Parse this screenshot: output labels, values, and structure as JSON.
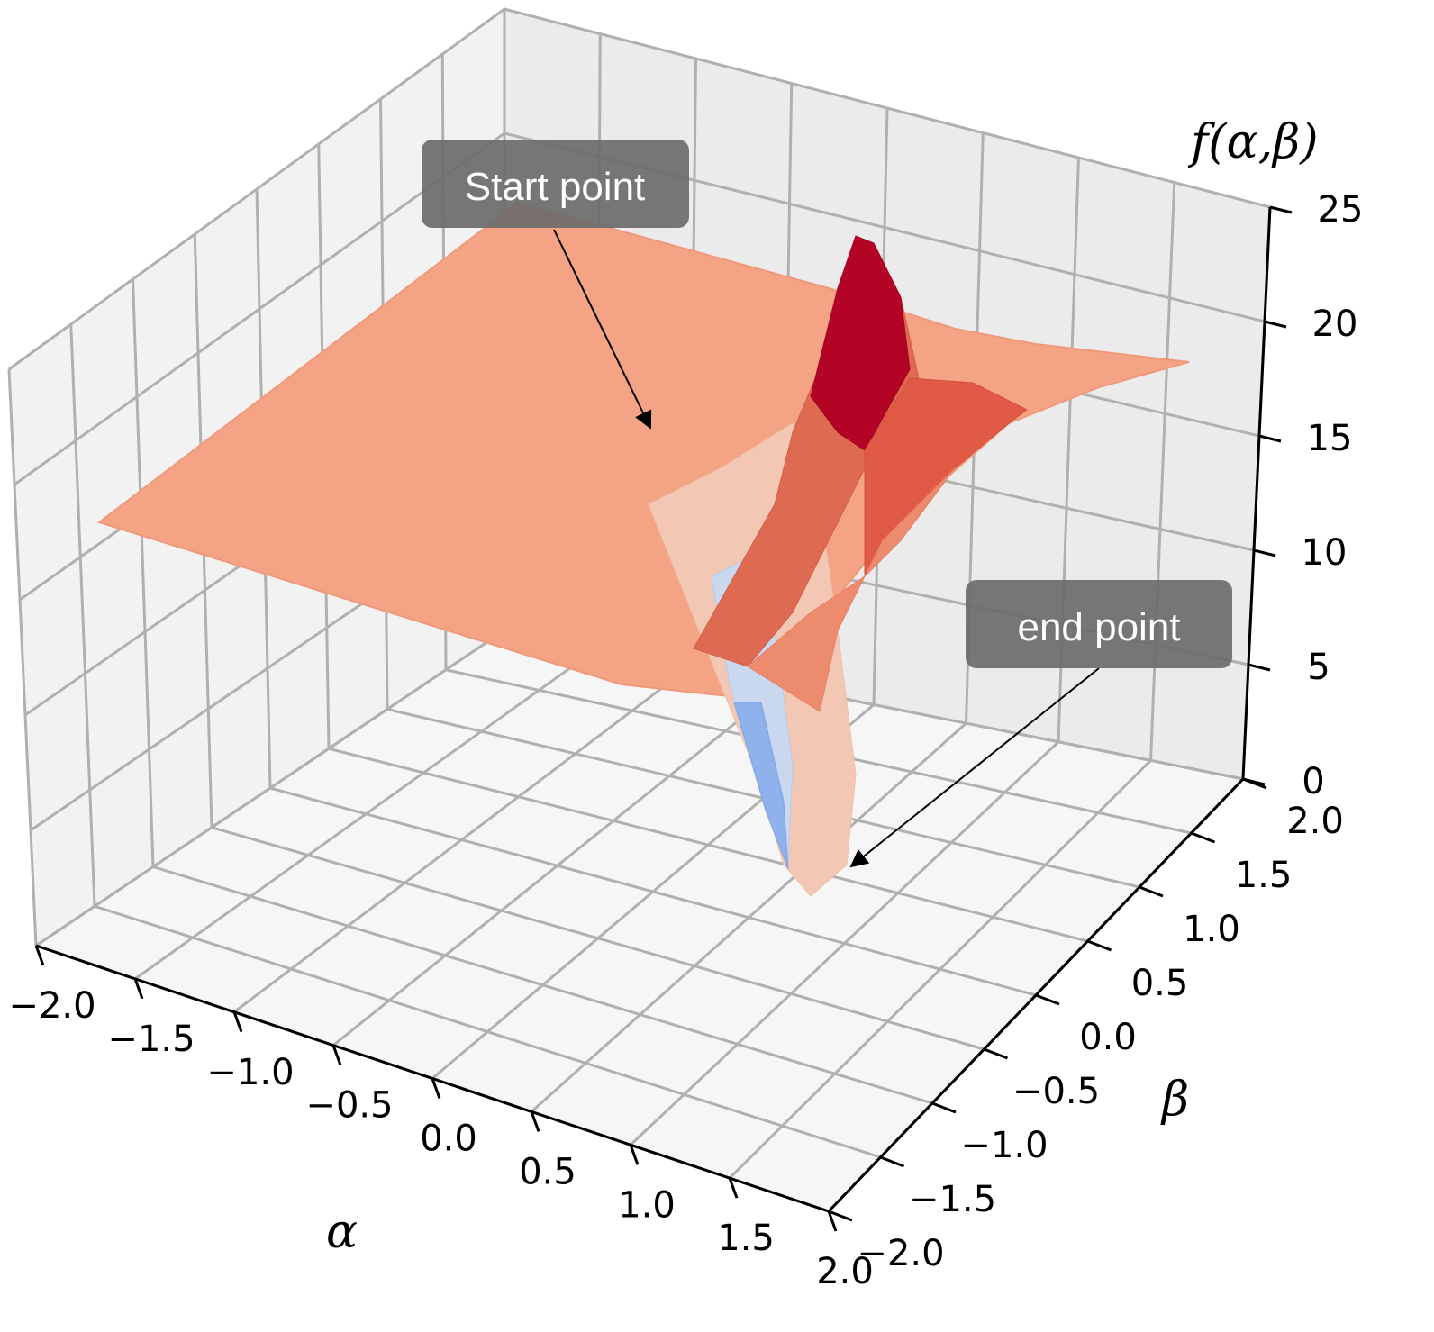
{
  "chart_data": {
    "type": "surface",
    "zlabel": "f(α,β)",
    "xlabel": "α",
    "ylabel": "β",
    "xlim": [
      -2.0,
      2.0
    ],
    "ylim": [
      -2.0,
      2.0
    ],
    "zlim": [
      0,
      25
    ],
    "x_ticks": [
      "−2.0",
      "−1.5",
      "−1.0",
      "−0.5",
      "0.0",
      "0.5",
      "1.0",
      "1.5",
      "2.0"
    ],
    "y_ticks": [
      "−2.0",
      "−1.5",
      "−1.0",
      "−0.5",
      "0.0",
      "0.5",
      "1.0",
      "1.5",
      "2.0"
    ],
    "z_ticks": [
      "0",
      "5",
      "10",
      "15",
      "20",
      "25"
    ],
    "colormap": "coolwarm",
    "grid": true,
    "annotations": [
      {
        "text": "Start point",
        "color": "#6b6b6b"
      },
      {
        "text": "end point",
        "color": "#6b6b6b"
      }
    ]
  }
}
